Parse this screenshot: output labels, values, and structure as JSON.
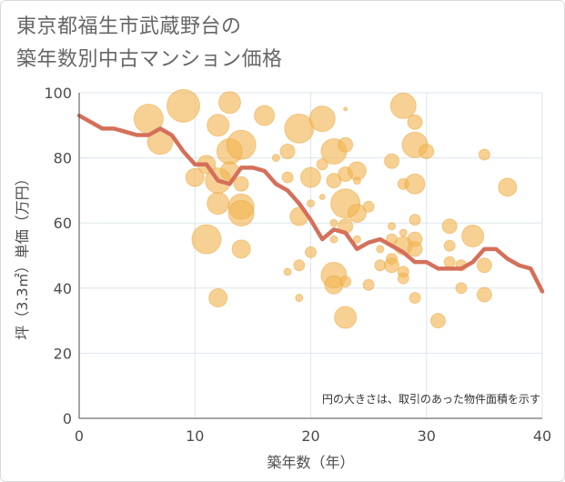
{
  "title_lines": [
    "東京都福生市武蔵野台の",
    "築年数別中古マンション価格"
  ],
  "chart_data": {
    "type": "scatter",
    "title": "東京都福生市武蔵野台の築年数別中古マンション価格",
    "xlabel": "築年数（年）",
    "ylabel": "坪（3.3㎡）単価（万円）",
    "xlim": [
      0,
      40
    ],
    "ylim": [
      0,
      100
    ],
    "xticks": [
      0,
      10,
      20,
      30,
      40
    ],
    "yticks": [
      0,
      20,
      40,
      60,
      80,
      100
    ],
    "grid": true,
    "note": "円の大きさは、取引のあった物件面積を示す",
    "bubble_color": "#f2b450",
    "line_color": "#d4705a",
    "bubbles": [
      {
        "x": 6,
        "y": 92,
        "s": 16
      },
      {
        "x": 7,
        "y": 85,
        "s": 14
      },
      {
        "x": 9,
        "y": 96,
        "s": 18
      },
      {
        "x": 10,
        "y": 74,
        "s": 10
      },
      {
        "x": 11,
        "y": 78,
        "s": 10
      },
      {
        "x": 11,
        "y": 55,
        "s": 16
      },
      {
        "x": 12,
        "y": 90,
        "s": 12
      },
      {
        "x": 12,
        "y": 73,
        "s": 14
      },
      {
        "x": 12,
        "y": 66,
        "s": 12
      },
      {
        "x": 12,
        "y": 37,
        "s": 10
      },
      {
        "x": 13,
        "y": 97,
        "s": 12
      },
      {
        "x": 13,
        "y": 82,
        "s": 14
      },
      {
        "x": 13,
        "y": 76,
        "s": 10
      },
      {
        "x": 14,
        "y": 84,
        "s": 16
      },
      {
        "x": 14,
        "y": 72,
        "s": 8
      },
      {
        "x": 14,
        "y": 65,
        "s": 14
      },
      {
        "x": 14,
        "y": 63,
        "s": 14
      },
      {
        "x": 14,
        "y": 52,
        "s": 10
      },
      {
        "x": 16,
        "y": 93,
        "s": 11
      },
      {
        "x": 17,
        "y": 80,
        "s": 4
      },
      {
        "x": 18,
        "y": 82,
        "s": 8
      },
      {
        "x": 18,
        "y": 74,
        "s": 6
      },
      {
        "x": 18,
        "y": 45,
        "s": 4
      },
      {
        "x": 19,
        "y": 89,
        "s": 16
      },
      {
        "x": 19,
        "y": 62,
        "s": 10
      },
      {
        "x": 19,
        "y": 47,
        "s": 6
      },
      {
        "x": 19,
        "y": 37,
        "s": 4
      },
      {
        "x": 20,
        "y": 74,
        "s": 11
      },
      {
        "x": 20,
        "y": 66,
        "s": 4
      },
      {
        "x": 20,
        "y": 51,
        "s": 6
      },
      {
        "x": 21,
        "y": 92,
        "s": 14
      },
      {
        "x": 21,
        "y": 78,
        "s": 6
      },
      {
        "x": 21,
        "y": 68,
        "s": 3
      },
      {
        "x": 22,
        "y": 82,
        "s": 14
      },
      {
        "x": 22,
        "y": 73,
        "s": 8
      },
      {
        "x": 22,
        "y": 60,
        "s": 4
      },
      {
        "x": 22,
        "y": 55,
        "s": 4
      },
      {
        "x": 22,
        "y": 44,
        "s": 14
      },
      {
        "x": 22,
        "y": 41,
        "s": 10
      },
      {
        "x": 23,
        "y": 95,
        "s": 2
      },
      {
        "x": 23,
        "y": 84,
        "s": 8
      },
      {
        "x": 23,
        "y": 75,
        "s": 8
      },
      {
        "x": 23,
        "y": 66,
        "s": 16
      },
      {
        "x": 23,
        "y": 59,
        "s": 8
      },
      {
        "x": 23,
        "y": 42,
        "s": 6
      },
      {
        "x": 23,
        "y": 31,
        "s": 12
      },
      {
        "x": 24,
        "y": 76,
        "s": 10
      },
      {
        "x": 24,
        "y": 73,
        "s": 4
      },
      {
        "x": 24,
        "y": 63,
        "s": 10
      },
      {
        "x": 24,
        "y": 55,
        "s": 4
      },
      {
        "x": 25,
        "y": 65,
        "s": 6
      },
      {
        "x": 25,
        "y": 41,
        "s": 6
      },
      {
        "x": 26,
        "y": 52,
        "s": 4
      },
      {
        "x": 26,
        "y": 47,
        "s": 6
      },
      {
        "x": 27,
        "y": 79,
        "s": 8
      },
      {
        "x": 27,
        "y": 59,
        "s": 4
      },
      {
        "x": 27,
        "y": 55,
        "s": 6
      },
      {
        "x": 27,
        "y": 49,
        "s": 6
      },
      {
        "x": 27,
        "y": 47,
        "s": 8
      },
      {
        "x": 28,
        "y": 96,
        "s": 14
      },
      {
        "x": 28,
        "y": 72,
        "s": 6
      },
      {
        "x": 28,
        "y": 57,
        "s": 4
      },
      {
        "x": 28,
        "y": 53,
        "s": 10
      },
      {
        "x": 28,
        "y": 45,
        "s": 6
      },
      {
        "x": 28,
        "y": 43,
        "s": 6
      },
      {
        "x": 29,
        "y": 91,
        "s": 8
      },
      {
        "x": 29,
        "y": 84,
        "s": 14
      },
      {
        "x": 29,
        "y": 72,
        "s": 11
      },
      {
        "x": 29,
        "y": 61,
        "s": 6
      },
      {
        "x": 29,
        "y": 55,
        "s": 8
      },
      {
        "x": 29,
        "y": 52,
        "s": 8
      },
      {
        "x": 29,
        "y": 37,
        "s": 6
      },
      {
        "x": 30,
        "y": 82,
        "s": 8
      },
      {
        "x": 31,
        "y": 30,
        "s": 8
      },
      {
        "x": 32,
        "y": 59,
        "s": 8
      },
      {
        "x": 32,
        "y": 53,
        "s": 6
      },
      {
        "x": 32,
        "y": 48,
        "s": 6
      },
      {
        "x": 33,
        "y": 47,
        "s": 6
      },
      {
        "x": 33,
        "y": 40,
        "s": 6
      },
      {
        "x": 34,
        "y": 56,
        "s": 12
      },
      {
        "x": 35,
        "y": 81,
        "s": 6
      },
      {
        "x": 35,
        "y": 47,
        "s": 8
      },
      {
        "x": 35,
        "y": 38,
        "s": 8
      },
      {
        "x": 37,
        "y": 71,
        "s": 10
      }
    ],
    "line": {
      "x": [
        0,
        1,
        2,
        3,
        4,
        5,
        6,
        7,
        8,
        9,
        10,
        11,
        12,
        13,
        14,
        15,
        16,
        17,
        18,
        19,
        20,
        21,
        22,
        23,
        24,
        25,
        26,
        27,
        28,
        29,
        30,
        31,
        32,
        33,
        34,
        35,
        36,
        37,
        38,
        39,
        40
      ],
      "y": [
        93,
        91,
        89,
        89,
        88,
        87,
        87,
        89,
        87,
        82,
        78,
        78,
        73,
        72,
        77,
        77,
        76,
        72,
        70,
        66,
        61,
        55,
        58,
        57,
        52,
        54,
        55,
        53,
        51,
        48,
        48,
        46,
        46,
        46,
        48,
        52,
        52,
        49,
        47,
        46,
        39
      ]
    }
  }
}
